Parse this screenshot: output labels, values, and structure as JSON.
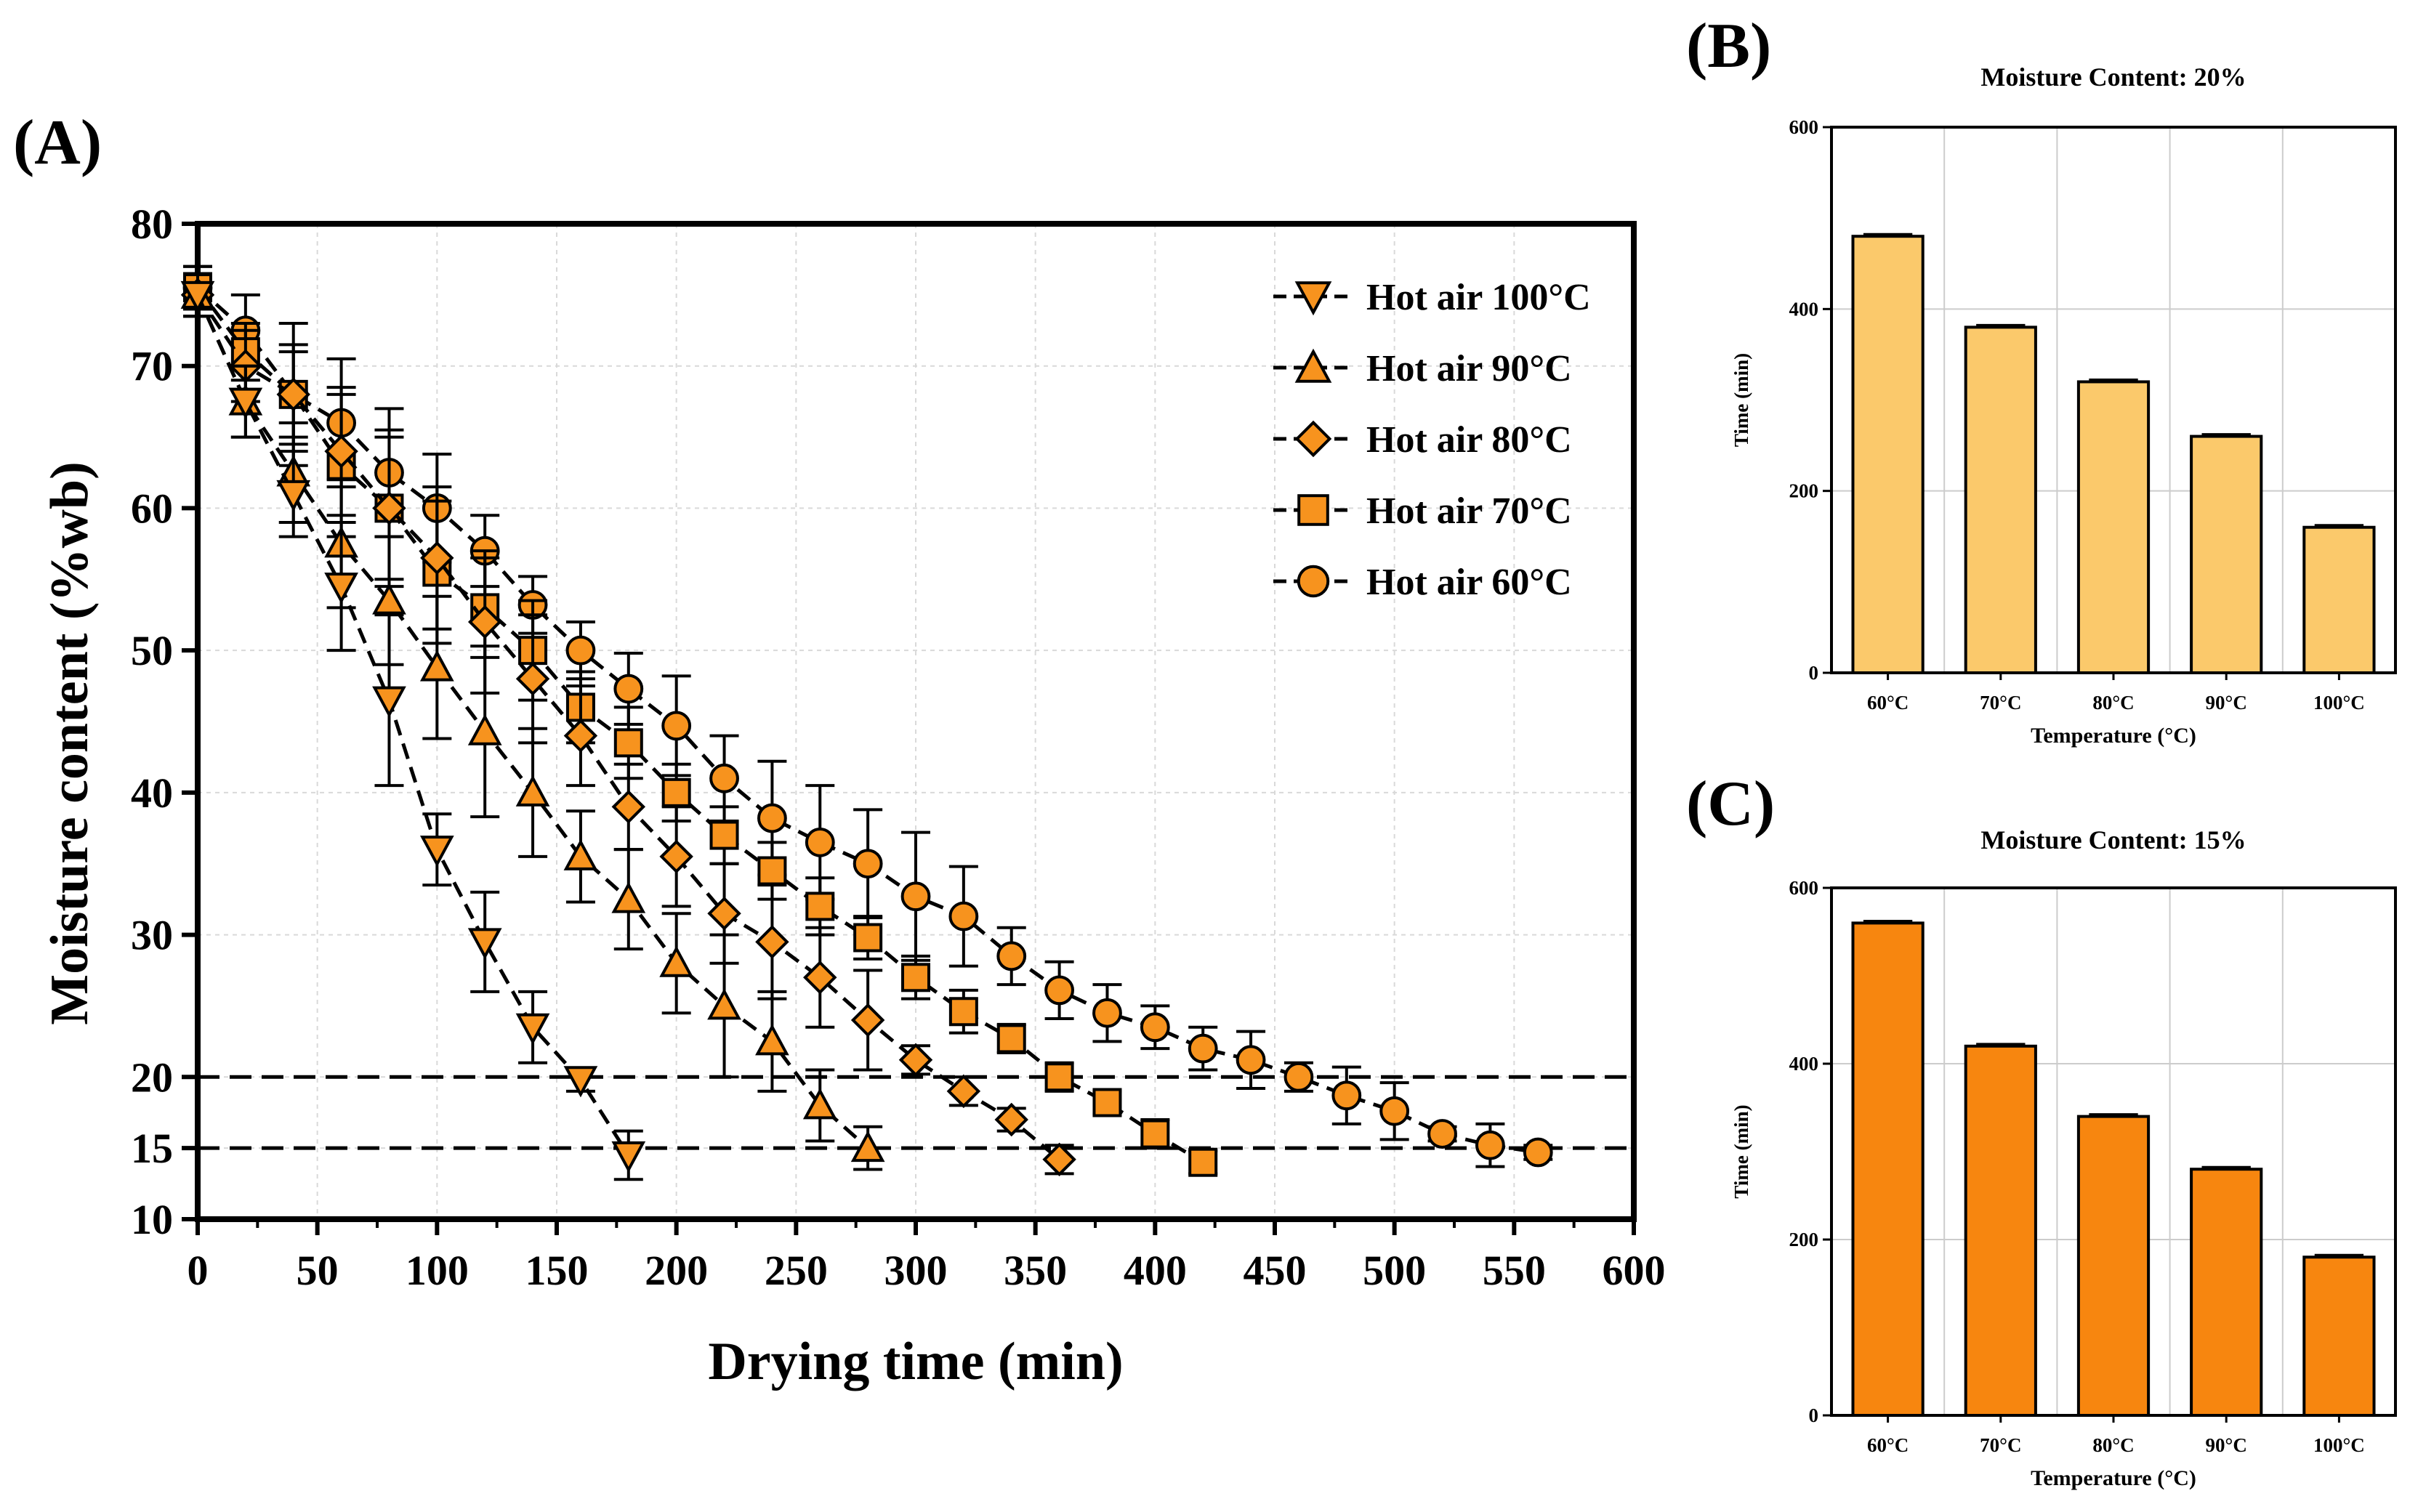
{
  "panels": {
    "a": "(A)",
    "b": "(B)",
    "c": "(C)"
  },
  "colors": {
    "orange": "#F7931E",
    "light_orange": "#FBC96B",
    "dark_orange": "#F7860F"
  },
  "chart_data": [
    {
      "id": "A",
      "type": "line",
      "title": "",
      "xlabel": "Drying time (min)",
      "ylabel": "Moisture content (%wb)",
      "xlim": [
        0,
        600
      ],
      "ylim": [
        10,
        80
      ],
      "xticks": [
        0,
        50,
        100,
        150,
        200,
        250,
        300,
        350,
        400,
        450,
        500,
        550,
        600
      ],
      "yticks": [
        10,
        15,
        20,
        30,
        40,
        50,
        60,
        70,
        80
      ],
      "reference_lines": [
        20,
        15
      ],
      "legend_position": "top-right",
      "series": [
        {
          "name": "Hot air 100°C",
          "marker": "triangle-down",
          "x": [
            0,
            20,
            40,
            60,
            80,
            100,
            120,
            140,
            160,
            180
          ],
          "y": [
            75,
            67.5,
            61,
            54.5,
            46.5,
            36,
            29.5,
            23.5,
            19.8,
            14.5
          ],
          "err": [
            1.5,
            2.5,
            3,
            4.5,
            6,
            2.5,
            3.5,
            2.5,
            0.8,
            1.7
          ]
        },
        {
          "name": "Hot air 90°C",
          "marker": "triangle-up",
          "x": [
            0,
            20,
            40,
            60,
            80,
            100,
            120,
            140,
            160,
            180,
            200,
            220,
            240,
            260,
            280
          ],
          "y": [
            75,
            67.5,
            62.5,
            57.5,
            53.5,
            48.8,
            44.3,
            40,
            35.5,
            32.5,
            28,
            25,
            22.5,
            18,
            15
          ],
          "err": [
            1.5,
            2.5,
            3.5,
            4.5,
            4.5,
            5,
            6,
            4.5,
            3.2,
            3.5,
            3.5,
            5,
            3.5,
            2.5,
            1.5
          ]
        },
        {
          "name": "Hot air 80°C",
          "marker": "diamond",
          "x": [
            0,
            20,
            40,
            60,
            80,
            100,
            120,
            140,
            160,
            180,
            200,
            220,
            240,
            260,
            280,
            300,
            320,
            340,
            360
          ],
          "y": [
            75,
            70,
            68,
            64,
            60,
            56.5,
            52,
            48,
            44,
            39,
            35.5,
            31.5,
            29.5,
            27,
            24,
            21.2,
            19,
            17,
            14.2
          ],
          "err": [
            1.5,
            2.5,
            3.5,
            4.5,
            5,
            5,
            5,
            4.5,
            3.5,
            3,
            3.5,
            3.5,
            4,
            3.5,
            3.5,
            1,
            1,
            0.8,
            1
          ]
        },
        {
          "name": "Hot air 70°C",
          "marker": "square",
          "x": [
            0,
            20,
            40,
            60,
            80,
            100,
            120,
            140,
            160,
            180,
            200,
            220,
            240,
            260,
            280,
            300,
            320,
            340,
            360,
            380,
            400,
            420
          ],
          "y": [
            75.5,
            71,
            68,
            63,
            60,
            55.5,
            53,
            50,
            46,
            43.5,
            40,
            37,
            34.5,
            32,
            29.8,
            27,
            24.6,
            22.7,
            20,
            18.2,
            16,
            14
          ],
          "err": [
            1.5,
            2,
            3,
            5,
            5.5,
            5,
            3.5,
            3.5,
            2.5,
            2.5,
            2,
            2,
            2,
            2,
            1.5,
            1.5,
            1.5,
            1,
            1,
            0.8,
            1,
            0.8
          ]
        },
        {
          "name": "Hot air 60°C",
          "marker": "circle",
          "x": [
            0,
            20,
            40,
            60,
            80,
            100,
            120,
            140,
            160,
            180,
            200,
            220,
            240,
            260,
            280,
            300,
            320,
            340,
            360,
            380,
            400,
            420,
            440,
            460,
            480,
            500,
            520,
            540,
            560
          ],
          "y": [
            75.5,
            72.5,
            68,
            66,
            62.5,
            60,
            57,
            53.2,
            50,
            47.3,
            44.7,
            41,
            38.2,
            36.5,
            35,
            32.7,
            31.3,
            28.5,
            26.1,
            24.5,
            23.5,
            22,
            21.2,
            20,
            18.7,
            17.6,
            16,
            15.2,
            14.7
          ],
          "err": [
            1.5,
            2.5,
            5,
            4.5,
            4.5,
            3.8,
            2.5,
            2,
            2,
            2.5,
            3.5,
            3,
            4,
            4,
            3.8,
            4.5,
            3.5,
            2,
            2,
            2,
            1.5,
            1.5,
            2,
            1,
            2,
            2,
            0.5,
            1.5,
            0.5
          ]
        }
      ]
    },
    {
      "id": "B",
      "type": "bar",
      "title": "Moisture Content: 20%",
      "xlabel": "Temperature (°C)",
      "ylabel": "Time (min)",
      "ylim": [
        0,
        600
      ],
      "yticks": [
        0,
        200,
        400,
        600
      ],
      "categories": [
        "60°C",
        "70°C",
        "80°C",
        "90°C",
        "100°C"
      ],
      "values": [
        480,
        380,
        320,
        260,
        160
      ],
      "err": [
        2,
        2,
        2,
        2,
        2
      ],
      "color": "#FBC96B"
    },
    {
      "id": "C",
      "type": "bar",
      "title": "Moisture Content: 15%",
      "xlabel": "Temperature (°C)",
      "ylabel": "Time (min)",
      "ylim": [
        0,
        600
      ],
      "yticks": [
        0,
        200,
        400,
        600
      ],
      "categories": [
        "60°C",
        "70°C",
        "80°C",
        "90°C",
        "100°C"
      ],
      "values": [
        560,
        420,
        340,
        280,
        180
      ],
      "err": [
        2,
        2,
        2,
        2,
        2
      ],
      "color": "#F7860F"
    }
  ]
}
